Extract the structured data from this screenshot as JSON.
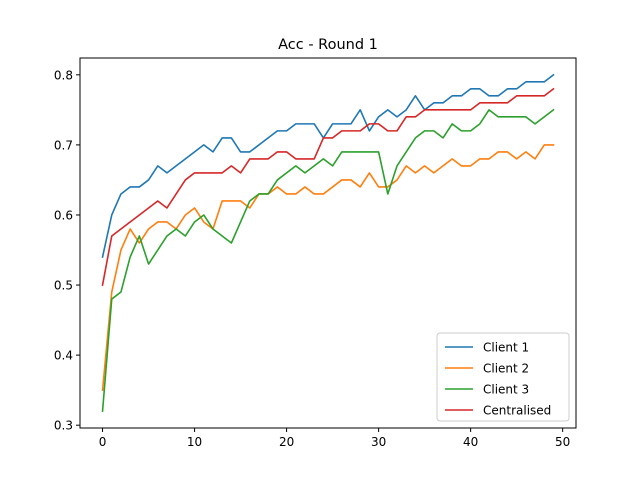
{
  "chart_data": {
    "type": "line",
    "title": "Acc - Round 1",
    "xlabel": "",
    "ylabel": "",
    "xlim": [
      -2.45,
      51.45
    ],
    "ylim": [
      0.296,
      0.824
    ],
    "xticks": [
      0,
      10,
      20,
      30,
      40,
      50
    ],
    "yticks": [
      0.3,
      0.4,
      0.5,
      0.6,
      0.7,
      0.8
    ],
    "xtick_labels": [
      "0",
      "10",
      "20",
      "30",
      "40",
      "50"
    ],
    "ytick_labels": [
      "0.3",
      "0.4",
      "0.5",
      "0.6",
      "0.7",
      "0.8"
    ],
    "grid": false,
    "legend_position": "lower-right",
    "x": [
      0,
      1,
      2,
      3,
      4,
      5,
      6,
      7,
      8,
      9,
      10,
      11,
      12,
      13,
      14,
      15,
      16,
      17,
      18,
      19,
      20,
      21,
      22,
      23,
      24,
      25,
      26,
      27,
      28,
      29,
      30,
      31,
      32,
      33,
      34,
      35,
      36,
      37,
      38,
      39,
      40,
      41,
      42,
      43,
      44,
      45,
      46,
      47,
      48,
      49
    ],
    "series": [
      {
        "name": "Client 1",
        "color": "#1f77b4",
        "values": [
          0.54,
          0.6,
          0.63,
          0.64,
          0.64,
          0.65,
          0.67,
          0.66,
          0.67,
          0.68,
          0.69,
          0.7,
          0.69,
          0.71,
          0.71,
          0.69,
          0.69,
          0.7,
          0.71,
          0.72,
          0.72,
          0.73,
          0.73,
          0.73,
          0.71,
          0.73,
          0.73,
          0.73,
          0.75,
          0.72,
          0.74,
          0.75,
          0.74,
          0.75,
          0.77,
          0.75,
          0.76,
          0.76,
          0.77,
          0.77,
          0.78,
          0.78,
          0.77,
          0.77,
          0.78,
          0.78,
          0.79,
          0.79,
          0.79,
          0.8
        ]
      },
      {
        "name": "Client 2",
        "color": "#ff7f0e",
        "values": [
          0.35,
          0.49,
          0.55,
          0.58,
          0.56,
          0.58,
          0.59,
          0.59,
          0.58,
          0.6,
          0.61,
          0.59,
          0.58,
          0.62,
          0.62,
          0.62,
          0.61,
          0.63,
          0.63,
          0.64,
          0.63,
          0.63,
          0.64,
          0.63,
          0.63,
          0.64,
          0.65,
          0.65,
          0.64,
          0.66,
          0.64,
          0.64,
          0.65,
          0.67,
          0.66,
          0.67,
          0.66,
          0.67,
          0.68,
          0.67,
          0.67,
          0.68,
          0.68,
          0.69,
          0.69,
          0.68,
          0.69,
          0.68,
          0.7,
          0.7
        ]
      },
      {
        "name": "Client 3",
        "color": "#2ca02c",
        "values": [
          0.32,
          0.48,
          0.49,
          0.54,
          0.57,
          0.53,
          0.55,
          0.57,
          0.58,
          0.57,
          0.59,
          0.6,
          0.58,
          0.57,
          0.56,
          0.59,
          0.62,
          0.63,
          0.63,
          0.65,
          0.66,
          0.67,
          0.66,
          0.67,
          0.68,
          0.67,
          0.69,
          0.69,
          0.69,
          0.69,
          0.69,
          0.63,
          0.67,
          0.69,
          0.71,
          0.72,
          0.72,
          0.71,
          0.73,
          0.72,
          0.72,
          0.73,
          0.75,
          0.74,
          0.74,
          0.74,
          0.74,
          0.73,
          0.74,
          0.75
        ]
      },
      {
        "name": "Centralised",
        "color": "#d62728",
        "values": [
          0.5,
          0.57,
          0.58,
          0.59,
          0.6,
          0.61,
          0.62,
          0.61,
          0.63,
          0.65,
          0.66,
          0.66,
          0.66,
          0.66,
          0.67,
          0.66,
          0.68,
          0.68,
          0.68,
          0.69,
          0.69,
          0.68,
          0.68,
          0.68,
          0.71,
          0.71,
          0.72,
          0.72,
          0.72,
          0.73,
          0.73,
          0.72,
          0.72,
          0.74,
          0.74,
          0.75,
          0.75,
          0.75,
          0.75,
          0.75,
          0.75,
          0.76,
          0.76,
          0.76,
          0.76,
          0.77,
          0.77,
          0.77,
          0.77,
          0.78
        ]
      }
    ]
  }
}
